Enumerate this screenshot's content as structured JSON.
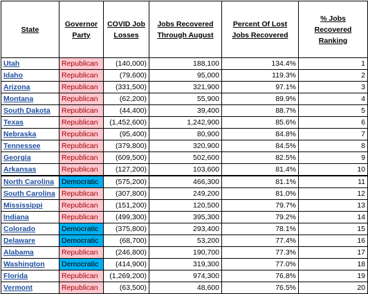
{
  "headers": {
    "state": "State",
    "party": "Governor Party",
    "losses": "COVID Job Losses",
    "recovered": "Jobs Recovered Through August",
    "percent": "Percent Of Lost Jobs Recovered",
    "ranking": "% Jobs Recovered Ranking"
  },
  "colors": {
    "republican_fill": "#ffc7ce",
    "republican_text": "#9c0006",
    "democratic_fill": "#00b0f0",
    "state_link": "#1f4e9e"
  },
  "rows": [
    {
      "state": "Utah",
      "party": "Republican",
      "losses": "(140,000)",
      "recovered": "188,100",
      "percent": "134.4%",
      "rank": "1"
    },
    {
      "state": "Idaho",
      "party": "Republican",
      "losses": "(79,600)",
      "recovered": "95,000",
      "percent": "119.3%",
      "rank": "2"
    },
    {
      "state": "Arizona",
      "party": "Republican",
      "losses": "(331,500)",
      "recovered": "321,900",
      "percent": "97.1%",
      "rank": "3"
    },
    {
      "state": "Montana",
      "party": "Republican",
      "losses": "(62,200)",
      "recovered": "55,900",
      "percent": "89.9%",
      "rank": "4"
    },
    {
      "state": "South Dakota",
      "party": "Republican",
      "losses": "(44,400)",
      "recovered": "39,400",
      "percent": "88.7%",
      "rank": "5"
    },
    {
      "state": "Texas",
      "party": "Republican",
      "losses": "(1,452,600)",
      "recovered": "1,242,900",
      "percent": "85.6%",
      "rank": "6"
    },
    {
      "state": "Nebraska",
      "party": "Republican",
      "losses": "(95,400)",
      "recovered": "80,900",
      "percent": "84.8%",
      "rank": "7"
    },
    {
      "state": "Tennessee",
      "party": "Republican",
      "losses": "(379,800)",
      "recovered": "320,900",
      "percent": "84.5%",
      "rank": "8"
    },
    {
      "state": "Georgia",
      "party": "Republican",
      "losses": "(609,500)",
      "recovered": "502,600",
      "percent": "82.5%",
      "rank": "9"
    },
    {
      "state": "Arkansas",
      "party": "Republican",
      "losses": "(127,200)",
      "recovered": "103,600",
      "percent": "81.4%",
      "rank": "10"
    },
    {
      "state": "North Carolina",
      "party": "Democratic",
      "losses": "(575,200)",
      "recovered": "466,300",
      "percent": "81.1%",
      "rank": "11"
    },
    {
      "state": "South Carolina",
      "party": "Republican",
      "losses": "(307,800)",
      "recovered": "249,200",
      "percent": "81.0%",
      "rank": "12"
    },
    {
      "state": "Mississippi",
      "party": "Republican",
      "losses": "(151,200)",
      "recovered": "120,500",
      "percent": "79.7%",
      "rank": "13"
    },
    {
      "state": "Indiana",
      "party": "Republican",
      "losses": "(499,300)",
      "recovered": "395,300",
      "percent": "79.2%",
      "rank": "14"
    },
    {
      "state": "Colorado",
      "party": "Democratic",
      "losses": "(375,800)",
      "recovered": "293,400",
      "percent": "78.1%",
      "rank": "15"
    },
    {
      "state": "Delaware",
      "party": "Democratic",
      "losses": "(68,700)",
      "recovered": "53,200",
      "percent": "77.4%",
      "rank": "16"
    },
    {
      "state": "Alabama",
      "party": "Republican",
      "losses": "(246,800)",
      "recovered": "190,700",
      "percent": "77.3%",
      "rank": "17"
    },
    {
      "state": "Washington",
      "party": "Democratic",
      "losses": "(414,900)",
      "recovered": "319,300",
      "percent": "77.0%",
      "rank": "18"
    },
    {
      "state": "Florida",
      "party": "Republican",
      "losses": "(1,269,200)",
      "recovered": "974,300",
      "percent": "76.8%",
      "rank": "19"
    },
    {
      "state": "Vermont",
      "party": "Republican",
      "losses": "(63,500)",
      "recovered": "48,600",
      "percent": "76.5%",
      "rank": "20"
    }
  ]
}
